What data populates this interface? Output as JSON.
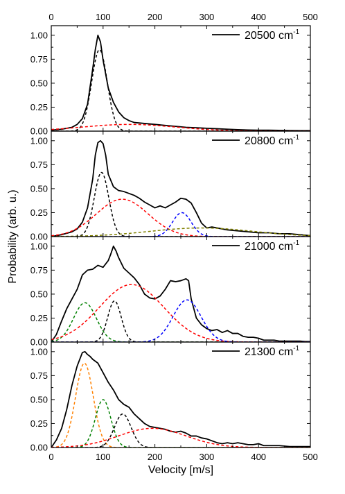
{
  "chart_data": [
    {
      "type": "line",
      "legend": {
        "label": "20500 cm",
        "superscript": "-1",
        "position": "top-right"
      },
      "xlim": [
        0,
        500
      ],
      "ylim": [
        0,
        1.1
      ],
      "series": [
        {
          "style": "solid",
          "color": "#000000",
          "x": [
            0,
            20,
            40,
            50,
            60,
            70,
            80,
            85,
            90,
            95,
            100,
            110,
            120,
            130,
            140,
            150,
            160,
            180,
            200,
            220,
            240,
            260,
            280,
            300,
            320,
            340,
            360,
            380,
            400,
            420,
            440,
            460,
            480,
            500
          ],
          "y": [
            0.01,
            0.02,
            0.04,
            0.07,
            0.13,
            0.28,
            0.65,
            0.85,
            1.0,
            0.93,
            0.74,
            0.45,
            0.3,
            0.2,
            0.14,
            0.11,
            0.09,
            0.08,
            0.07,
            0.06,
            0.05,
            0.04,
            0.035,
            0.03,
            0.025,
            0.02,
            0.015,
            0.012,
            0.01,
            0.01,
            0.008,
            0.006,
            0.005,
            0.005
          ]
        },
        {
          "style": "dashed",
          "color": "#000000",
          "kind": "gaussian",
          "amplitude": 0.85,
          "center": 93,
          "sigma": 15
        },
        {
          "style": "dashed",
          "color": "#ff0000",
          "kind": "gaussian",
          "amplitude": 0.07,
          "center": 150,
          "sigma": 90
        }
      ]
    },
    {
      "type": "line",
      "legend": {
        "label": "20800 cm",
        "superscript": "-1",
        "position": "top-right"
      },
      "xlim": [
        0,
        500
      ],
      "ylim": [
        0,
        1.1
      ],
      "series": [
        {
          "style": "solid",
          "color": "#000000",
          "x": [
            0,
            20,
            40,
            50,
            60,
            70,
            80,
            85,
            90,
            95,
            100,
            105,
            110,
            120,
            130,
            140,
            150,
            160,
            170,
            180,
            190,
            200,
            210,
            220,
            230,
            240,
            250,
            260,
            270,
            280,
            290,
            300,
            310,
            320,
            340,
            360,
            380,
            400,
            420,
            440,
            460,
            480,
            500
          ],
          "y": [
            0.0,
            0.02,
            0.05,
            0.08,
            0.15,
            0.3,
            0.6,
            0.85,
            0.98,
            1.0,
            0.97,
            0.85,
            0.65,
            0.52,
            0.48,
            0.47,
            0.45,
            0.43,
            0.4,
            0.36,
            0.33,
            0.3,
            0.32,
            0.3,
            0.33,
            0.36,
            0.4,
            0.39,
            0.35,
            0.25,
            0.14,
            0.09,
            0.1,
            0.09,
            0.07,
            0.06,
            0.05,
            0.04,
            0.04,
            0.03,
            0.03,
            0.02,
            0.01
          ]
        },
        {
          "style": "dashed",
          "color": "#000000",
          "kind": "gaussian",
          "amplitude": 0.67,
          "center": 97,
          "sigma": 14
        },
        {
          "style": "dashed",
          "color": "#ff0000",
          "kind": "gaussian",
          "amplitude": 0.39,
          "center": 137,
          "sigma": 50
        },
        {
          "style": "dashed",
          "color": "#0000ff",
          "kind": "gaussian",
          "amplitude": 0.25,
          "center": 252,
          "sigma": 18
        },
        {
          "style": "dashed",
          "color": "#808000",
          "kind": "gaussian",
          "amplitude": 0.09,
          "center": 290,
          "sigma": 100
        }
      ]
    },
    {
      "type": "line",
      "legend": {
        "label": "21000 cm",
        "superscript": "-1",
        "position": "top-right"
      },
      "xlim": [
        0,
        500
      ],
      "ylim": [
        0,
        1.1
      ],
      "series": [
        {
          "style": "solid",
          "color": "#000000",
          "x": [
            0,
            10,
            20,
            30,
            40,
            50,
            60,
            70,
            80,
            90,
            100,
            110,
            115,
            120,
            125,
            130,
            140,
            150,
            160,
            170,
            180,
            190,
            200,
            210,
            220,
            230,
            240,
            250,
            260,
            265,
            270,
            280,
            290,
            300,
            310,
            320,
            330,
            340,
            350,
            360,
            370,
            380,
            390,
            400,
            410,
            420,
            430,
            440,
            450,
            460,
            470,
            480,
            490,
            500
          ],
          "y": [
            0.0,
            0.08,
            0.22,
            0.35,
            0.45,
            0.55,
            0.7,
            0.75,
            0.76,
            0.8,
            0.78,
            0.85,
            0.92,
            1.0,
            0.95,
            0.88,
            0.77,
            0.72,
            0.67,
            0.6,
            0.5,
            0.46,
            0.45,
            0.48,
            0.55,
            0.64,
            0.63,
            0.64,
            0.66,
            0.64,
            0.45,
            0.25,
            0.18,
            0.14,
            0.12,
            0.13,
            0.1,
            0.12,
            0.09,
            0.09,
            0.06,
            0.05,
            0.05,
            0.04,
            0.02,
            0.02,
            0.02,
            0.01,
            0.01,
            0.01,
            0.01,
            0.01,
            0.005,
            0.005
          ]
        },
        {
          "style": "dashed",
          "color": "#008000",
          "kind": "gaussian",
          "amplitude": 0.41,
          "center": 65,
          "sigma": 22
        },
        {
          "style": "dashed",
          "color": "#000000",
          "kind": "gaussian",
          "amplitude": 0.43,
          "center": 122,
          "sigma": 13
        },
        {
          "style": "dashed",
          "color": "#ff0000",
          "kind": "gaussian",
          "amplitude": 0.6,
          "center": 155,
          "sigma": 62
        },
        {
          "style": "dashed",
          "color": "#0000ff",
          "kind": "gaussian",
          "amplitude": 0.44,
          "center": 262,
          "sigma": 27
        }
      ]
    },
    {
      "type": "line",
      "legend": {
        "label": "21300 cm",
        "superscript": "-1",
        "position": "top-right"
      },
      "xlim": [
        0,
        500
      ],
      "ylim": [
        0,
        1.1
      ],
      "series": [
        {
          "style": "solid",
          "color": "#000000",
          "x": [
            0,
            10,
            20,
            30,
            40,
            50,
            60,
            65,
            70,
            75,
            80,
            90,
            100,
            110,
            120,
            130,
            140,
            150,
            160,
            170,
            180,
            190,
            200,
            210,
            220,
            230,
            240,
            250,
            260,
            270,
            280,
            290,
            300,
            310,
            320,
            330,
            340,
            350,
            360,
            370,
            380,
            390,
            400,
            410,
            420,
            440,
            460,
            480,
            500
          ],
          "y": [
            0.0,
            0.08,
            0.2,
            0.4,
            0.65,
            0.85,
            0.99,
            1.0,
            0.97,
            0.95,
            0.92,
            0.88,
            0.78,
            0.68,
            0.6,
            0.5,
            0.45,
            0.42,
            0.35,
            0.3,
            0.25,
            0.22,
            0.21,
            0.2,
            0.19,
            0.17,
            0.16,
            0.17,
            0.15,
            0.12,
            0.12,
            0.1,
            0.09,
            0.07,
            0.05,
            0.04,
            0.05,
            0.04,
            0.05,
            0.04,
            0.03,
            0.03,
            0.04,
            0.02,
            0.02,
            0.02,
            0.01,
            0.01,
            0.01
          ]
        },
        {
          "style": "dashed",
          "color": "#ff8000",
          "kind": "gaussian",
          "amplitude": 0.88,
          "center": 64,
          "sigma": 17
        },
        {
          "style": "dashed",
          "color": "#008000",
          "kind": "gaussian",
          "amplitude": 0.5,
          "center": 100,
          "sigma": 15
        },
        {
          "style": "dashed",
          "color": "#000000",
          "kind": "gaussian",
          "amplitude": 0.35,
          "center": 138,
          "sigma": 16
        },
        {
          "style": "dashed",
          "color": "#ff0000",
          "kind": "gaussian",
          "amplitude": 0.2,
          "center": 195,
          "sigma": 65
        }
      ]
    }
  ],
  "axes": {
    "xlabel": "Velocity [m/s]",
    "ylabel": "Probability (arb. u.)",
    "x_ticks": [
      "0",
      "100",
      "200",
      "300",
      "400",
      "500"
    ],
    "y_ticks": [
      "0.00",
      "0.25",
      "0.50",
      "0.75",
      "1.00"
    ]
  }
}
